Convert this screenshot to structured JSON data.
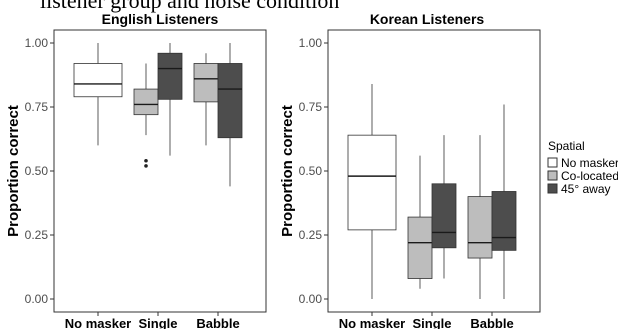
{
  "figure_caption_partial": "listener group and noise condition",
  "legend": {
    "title": "Spatial",
    "items": [
      {
        "label": "No masker",
        "color": "#ffffff"
      },
      {
        "label": "Co-located",
        "color": "#bdbdbd"
      },
      {
        "label": "45° away",
        "color": "#4d4d4d"
      }
    ]
  },
  "chart_data": [
    {
      "type": "box",
      "title": "English Listeners",
      "ylabel": "Proportion correct",
      "ylim": [
        0,
        1
      ],
      "yticks": [
        "0.00",
        "0.25",
        "0.50",
        "0.75",
        "1.00"
      ],
      "categories": [
        "No masker",
        "Single",
        "Babble"
      ],
      "boxes": [
        {
          "category": "No masker",
          "series": "No masker",
          "min": 0.6,
          "q1": 0.79,
          "median": 0.84,
          "q3": 0.92,
          "max": 1.0,
          "outliers": []
        },
        {
          "category": "Single",
          "series": "Co-located",
          "min": 0.64,
          "q1": 0.72,
          "median": 0.76,
          "q3": 0.82,
          "max": 0.92,
          "outliers": [
            0.52,
            0.54
          ]
        },
        {
          "category": "Single",
          "series": "45° away",
          "min": 0.56,
          "q1": 0.78,
          "median": 0.9,
          "q3": 0.96,
          "max": 1.0,
          "outliers": []
        },
        {
          "category": "Babble",
          "series": "Co-located",
          "min": 0.6,
          "q1": 0.77,
          "median": 0.86,
          "q3": 0.92,
          "max": 0.96,
          "outliers": []
        },
        {
          "category": "Babble",
          "series": "45° away",
          "min": 0.44,
          "q1": 0.63,
          "median": 0.82,
          "q3": 0.92,
          "max": 1.0,
          "outliers": []
        }
      ]
    },
    {
      "type": "box",
      "title": "Korean Listeners",
      "ylabel": "Proportion correct",
      "ylim": [
        0,
        1
      ],
      "yticks": [
        "0.00",
        "0.25",
        "0.50",
        "0.75",
        "1.00"
      ],
      "categories": [
        "No masker",
        "Single",
        "Babble"
      ],
      "boxes": [
        {
          "category": "No masker",
          "series": "No masker",
          "min": 0.0,
          "q1": 0.27,
          "median": 0.48,
          "q3": 0.64,
          "max": 0.84,
          "outliers": []
        },
        {
          "category": "Single",
          "series": "Co-located",
          "min": 0.04,
          "q1": 0.08,
          "median": 0.22,
          "q3": 0.32,
          "max": 0.56,
          "outliers": []
        },
        {
          "category": "Single",
          "series": "45° away",
          "min": 0.08,
          "q1": 0.2,
          "median": 0.26,
          "q3": 0.45,
          "max": 0.64,
          "outliers": []
        },
        {
          "category": "Babble",
          "series": "Co-located",
          "min": 0.0,
          "q1": 0.16,
          "median": 0.22,
          "q3": 0.4,
          "max": 0.64,
          "outliers": []
        },
        {
          "category": "Babble",
          "series": "45° away",
          "min": 0.0,
          "q1": 0.19,
          "median": 0.24,
          "q3": 0.42,
          "max": 0.76,
          "outliers": []
        }
      ]
    }
  ]
}
